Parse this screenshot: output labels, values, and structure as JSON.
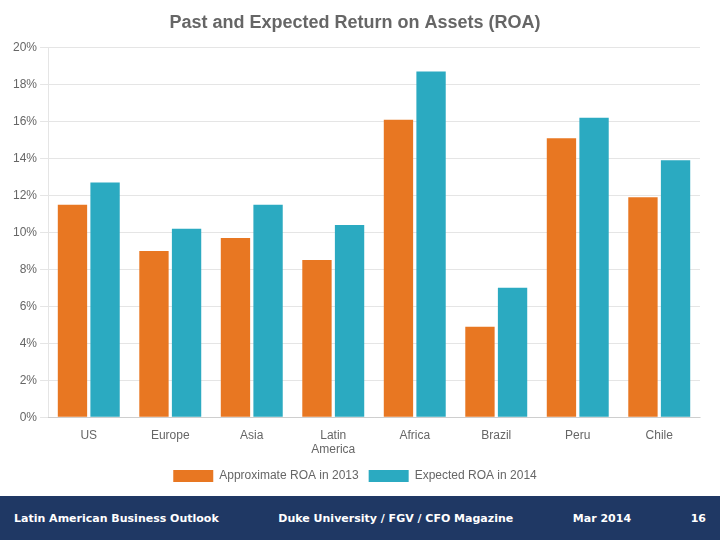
{
  "chart_data": {
    "type": "bar",
    "title": "Past and Expected Return on Assets (ROA)",
    "categories": [
      "US",
      "Europe",
      "Asia",
      "Latin\nAmerica",
      "Africa",
      "Brazil",
      "Peru",
      "Chile"
    ],
    "series": [
      {
        "name": "Approximate ROA in 2013",
        "color": "#E87722",
        "values": [
          11.5,
          9.0,
          9.7,
          8.5,
          16.1,
          4.9,
          15.1,
          11.9
        ]
      },
      {
        "name": "Expected ROA in 2014",
        "color": "#2BAAC1",
        "values": [
          12.7,
          10.2,
          11.5,
          10.4,
          18.7,
          7.0,
          16.2,
          13.9
        ]
      }
    ],
    "ylim": [
      0,
      20
    ],
    "yticks": [
      {
        "value": 0,
        "label": "0%"
      },
      {
        "value": 2,
        "label": "2%"
      },
      {
        "value": 4,
        "label": "4%"
      },
      {
        "value": 6,
        "label": "6%"
      },
      {
        "value": 8,
        "label": "8%"
      },
      {
        "value": 10,
        "label": "10%"
      },
      {
        "value": 12,
        "label": "12%"
      },
      {
        "value": 14,
        "label": "14%"
      },
      {
        "value": 16,
        "label": "16%"
      },
      {
        "value": 18,
        "label": "18%"
      },
      {
        "value": 20,
        "label": "20%"
      }
    ],
    "grid": true,
    "legend": "bottom",
    "annotations": [
      "Latin American Business Outlook",
      "Duke University / FGV / CFO Magazine",
      "Mar 2014",
      "16"
    ]
  }
}
